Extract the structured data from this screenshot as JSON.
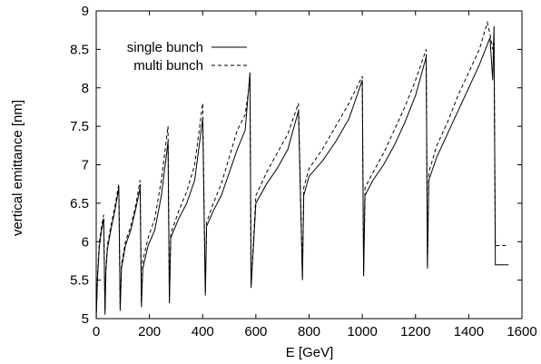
{
  "chart_data": {
    "type": "line",
    "title": "",
    "xlabel": "E [GeV]",
    "ylabel": "vertical emittance [nm]",
    "xlim": [
      0,
      1600
    ],
    "ylim": [
      5,
      9
    ],
    "xticks": [
      "0",
      "200",
      "400",
      "600",
      "800",
      "1000",
      "1200",
      "1400",
      "1600"
    ],
    "yticks": [
      "5",
      "5.5",
      "6",
      "6.5",
      "7",
      "7.5",
      "8",
      "8.5",
      "9"
    ],
    "grid": false,
    "legend_position": "top-left",
    "series": [
      {
        "name": "single bunch",
        "style": "solid",
        "color": "#000000",
        "x": [
          0,
          5,
          12,
          20,
          28,
          33,
          36,
          42,
          55,
          70,
          85,
          90,
          95,
          110,
          130,
          150,
          165,
          170,
          175,
          195,
          220,
          245,
          270,
          275,
          280,
          310,
          340,
          370,
          400,
          410,
          415,
          440,
          470,
          500,
          530,
          560,
          578,
          582,
          600,
          640,
          680,
          720,
          760,
          775,
          780,
          800,
          850,
          900,
          950,
          1000,
          1005,
          1010,
          1040,
          1080,
          1120,
          1160,
          1200,
          1240,
          1245,
          1250,
          1280,
          1320,
          1360,
          1400,
          1440,
          1480,
          1490,
          1495,
          1500,
          1550
        ],
        "y": [
          5.0,
          5.55,
          5.95,
          6.15,
          6.3,
          5.05,
          5.6,
          5.9,
          6.15,
          6.4,
          6.7,
          5.1,
          5.65,
          5.95,
          6.15,
          6.45,
          6.7,
          5.15,
          5.65,
          5.95,
          6.15,
          6.6,
          7.3,
          5.2,
          6.05,
          6.3,
          6.5,
          6.8,
          7.6,
          5.3,
          6.2,
          6.4,
          6.6,
          6.9,
          7.2,
          7.45,
          8.2,
          5.4,
          6.5,
          6.75,
          6.95,
          7.2,
          7.7,
          5.5,
          6.6,
          6.85,
          7.05,
          7.3,
          7.6,
          8.1,
          5.55,
          6.6,
          6.8,
          7.0,
          7.25,
          7.55,
          7.9,
          8.4,
          5.65,
          6.8,
          7.1,
          7.4,
          7.7,
          8.0,
          8.3,
          8.65,
          8.1,
          8.8,
          5.7,
          5.7
        ]
      },
      {
        "name": "multi bunch",
        "style": "dashed",
        "color": "#000000",
        "x": [
          0,
          5,
          12,
          20,
          28,
          33,
          36,
          42,
          55,
          70,
          85,
          90,
          95,
          110,
          130,
          150,
          165,
          170,
          175,
          195,
          220,
          245,
          270,
          275,
          280,
          310,
          340,
          370,
          400,
          410,
          415,
          440,
          470,
          500,
          530,
          560,
          578,
          582,
          600,
          640,
          680,
          720,
          760,
          775,
          780,
          800,
          850,
          900,
          950,
          1000,
          1005,
          1010,
          1040,
          1080,
          1120,
          1160,
          1200,
          1240,
          1245,
          1250,
          1280,
          1320,
          1360,
          1400,
          1440,
          1470,
          1480,
          1490,
          1495,
          1500,
          1550
        ],
        "y": [
          5.0,
          5.6,
          6.0,
          6.2,
          6.35,
          5.1,
          5.65,
          5.95,
          6.2,
          6.45,
          6.75,
          5.15,
          5.7,
          6.0,
          6.2,
          6.5,
          6.8,
          5.2,
          5.75,
          6.05,
          6.3,
          6.8,
          7.5,
          5.25,
          6.1,
          6.4,
          6.65,
          7.0,
          7.8,
          5.35,
          6.25,
          6.5,
          6.75,
          7.1,
          7.45,
          7.65,
          8.1,
          5.45,
          6.6,
          6.9,
          7.15,
          7.4,
          7.8,
          5.55,
          6.7,
          6.95,
          7.2,
          7.5,
          7.8,
          8.15,
          5.6,
          6.7,
          6.9,
          7.15,
          7.45,
          7.75,
          8.1,
          8.5,
          5.7,
          6.9,
          7.25,
          7.55,
          7.9,
          8.2,
          8.5,
          8.85,
          8.7,
          8.5,
          8.65,
          5.95,
          5.95
        ]
      }
    ]
  }
}
